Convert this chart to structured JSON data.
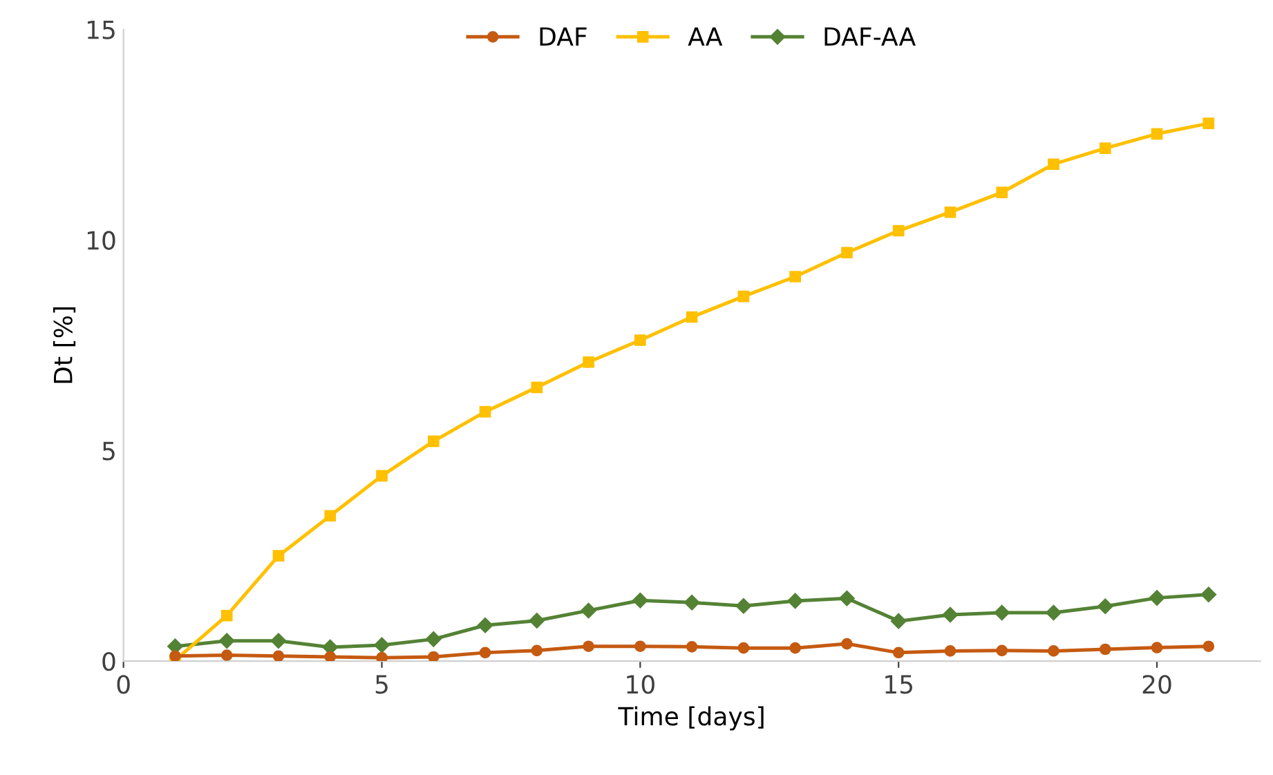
{
  "chart_data": {
    "type": "line",
    "xlabel": "Time [days]",
    "ylabel": "Dt [%]",
    "x": [
      1,
      2,
      3,
      4,
      5,
      6,
      7,
      8,
      9,
      10,
      11,
      12,
      13,
      14,
      15,
      16,
      17,
      18,
      19,
      20,
      21
    ],
    "xlim": [
      0,
      22
    ],
    "xticks": [
      0,
      5,
      10,
      15,
      20
    ],
    "ylim": [
      0,
      15
    ],
    "yticks": [
      0,
      5,
      10,
      15
    ],
    "grid": false,
    "legend": "top",
    "line_style": "solid",
    "series": [
      {
        "name": "DAF",
        "color": "#c55a11",
        "marker": "circle",
        "values": [
          0.12,
          0.14,
          0.12,
          0.1,
          0.08,
          0.1,
          0.2,
          0.25,
          0.35,
          0.35,
          0.34,
          0.31,
          0.31,
          0.41,
          0.2,
          0.24,
          0.25,
          0.24,
          0.28,
          0.32,
          0.35
        ]
      },
      {
        "name": "AA",
        "color": "#ffc000",
        "marker": "square",
        "values": [
          0.02,
          1.08,
          2.5,
          3.45,
          4.4,
          5.22,
          5.92,
          6.5,
          7.1,
          7.62,
          8.17,
          8.66,
          9.13,
          9.7,
          10.22,
          10.66,
          11.13,
          11.8,
          12.18,
          12.52,
          12.77
        ]
      },
      {
        "name": "DAF-AA",
        "color": "#548235",
        "marker": "diamond",
        "values": [
          0.35,
          0.48,
          0.48,
          0.33,
          0.38,
          0.52,
          0.85,
          0.96,
          1.2,
          1.44,
          1.39,
          1.31,
          1.43,
          1.49,
          0.95,
          1.1,
          1.15,
          1.15,
          1.3,
          1.5,
          1.58
        ]
      }
    ]
  }
}
